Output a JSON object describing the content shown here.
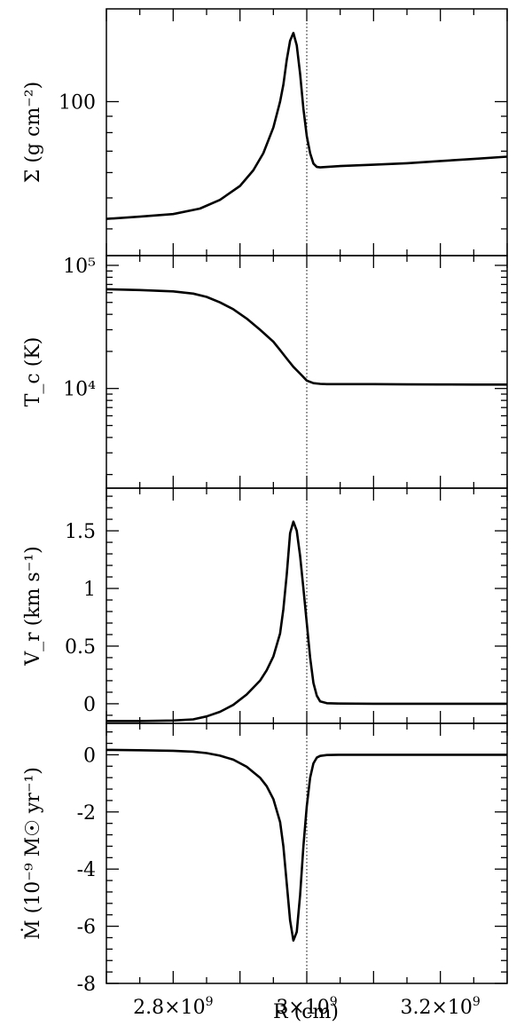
{
  "chart_data": [
    {
      "type": "line",
      "ylabel": "Σ (g cm⁻²)",
      "yscale": "log",
      "ylim": [
        33,
        195
      ],
      "yticks": [
        {
          "value": 100,
          "label": "100"
        }
      ],
      "series": [
        {
          "x": [
            2.7,
            2.75,
            2.8,
            2.84,
            2.87,
            2.9,
            2.92,
            2.935,
            2.95,
            2.96,
            2.965,
            2.97,
            2.975,
            2.98,
            2.985,
            2.99,
            2.995,
            3.0,
            3.005,
            3.01,
            3.015,
            3.02,
            3.03,
            3.05,
            3.1,
            3.15,
            3.2,
            3.25,
            3.3
          ],
          "y": [
            43,
            43.7,
            44.5,
            46.3,
            49.3,
            54.5,
            61,
            69,
            83,
            100,
            113,
            135,
            155,
            164,
            150,
            122,
            95,
            78,
            69,
            64,
            62.5,
            62.3,
            62.5,
            62.9,
            63.5,
            64.2,
            65.2,
            66.2,
            67.3
          ]
        }
      ]
    },
    {
      "type": "line",
      "ylabel": "T_c (K)",
      "yscale": "log",
      "ylim": [
        1550,
        120000
      ],
      "yticks": [
        {
          "value": 100000,
          "label": "10⁵"
        },
        {
          "value": 10000,
          "label": "10⁴"
        }
      ],
      "series": [
        {
          "x": [
            2.7,
            2.75,
            2.8,
            2.83,
            2.85,
            2.87,
            2.89,
            2.91,
            2.93,
            2.95,
            2.96,
            2.97,
            2.98,
            2.99,
            3.0,
            3.01,
            3.02,
            3.03,
            3.05,
            3.1,
            3.15,
            3.2,
            3.25,
            3.3
          ],
          "y": [
            64000,
            63000,
            61500,
            59000,
            55500,
            50000,
            44000,
            37000,
            30000,
            24000,
            20500,
            17500,
            15000,
            13200,
            11600,
            11050,
            10900,
            10850,
            10850,
            10850,
            10800,
            10780,
            10760,
            10750
          ]
        }
      ]
    },
    {
      "type": "line",
      "ylabel": "V_r (km s⁻¹)",
      "ylim": [
        -0.17,
        1.87
      ],
      "yticks": [
        {
          "value": 0,
          "label": "0"
        },
        {
          "value": 0.5,
          "label": "0.5"
        },
        {
          "value": 1,
          "label": "1"
        },
        {
          "value": 1.5,
          "label": "1.5"
        }
      ],
      "series": [
        {
          "x": [
            2.7,
            2.75,
            2.8,
            2.83,
            2.85,
            2.87,
            2.89,
            2.91,
            2.93,
            2.94,
            2.95,
            2.96,
            2.965,
            2.97,
            2.975,
            2.98,
            2.985,
            2.99,
            2.995,
            3.0,
            3.005,
            3.01,
            3.015,
            3.02,
            3.03,
            3.05,
            3.1,
            3.2,
            3.3
          ],
          "y": [
            -0.15,
            -0.15,
            -0.145,
            -0.135,
            -0.11,
            -0.07,
            -0.01,
            0.08,
            0.2,
            0.29,
            0.41,
            0.61,
            0.82,
            1.12,
            1.48,
            1.58,
            1.5,
            1.28,
            1.0,
            0.7,
            0.4,
            0.18,
            0.07,
            0.02,
            0.005,
            0.002,
            0.0,
            0.0,
            0.0
          ]
        }
      ]
    },
    {
      "type": "line",
      "ylabel": "Ṁ (10⁻⁹ M☉ yr⁻¹)",
      "xlabel": "R (cm)",
      "ylim": [
        -8,
        1.1
      ],
      "yticks": [
        {
          "value": 0,
          "label": "0"
        },
        {
          "value": -2,
          "label": "-2"
        },
        {
          "value": -4,
          "label": "-4"
        },
        {
          "value": -6,
          "label": "-6"
        },
        {
          "value": -8,
          "label": "-8"
        }
      ],
      "series": [
        {
          "x": [
            2.7,
            2.75,
            2.8,
            2.83,
            2.85,
            2.87,
            2.89,
            2.91,
            2.93,
            2.94,
            2.95,
            2.96,
            2.965,
            2.97,
            2.975,
            2.98,
            2.985,
            2.99,
            2.995,
            3.0,
            3.005,
            3.01,
            3.015,
            3.02,
            3.03,
            3.05,
            3.1,
            3.2,
            3.3
          ],
          "y": [
            0.17,
            0.16,
            0.14,
            0.11,
            0.06,
            -0.03,
            -0.17,
            -0.42,
            -0.8,
            -1.1,
            -1.55,
            -2.35,
            -3.2,
            -4.5,
            -5.8,
            -6.5,
            -6.2,
            -4.9,
            -3.2,
            -1.8,
            -0.8,
            -0.3,
            -0.1,
            -0.04,
            -0.01,
            0.0,
            0.0,
            0.0,
            0.0
          ]
        }
      ]
    }
  ],
  "x_axis": {
    "xlim": [
      2.7,
      3.3
    ],
    "marker_x": 3.0,
    "ticks": [
      {
        "value": 2.8,
        "base": "2.8×10",
        "exp": "9"
      },
      {
        "value": 3.0,
        "base": "3×10",
        "exp": "9"
      },
      {
        "value": 3.2,
        "base": "3.2×10",
        "exp": "9"
      }
    ]
  }
}
